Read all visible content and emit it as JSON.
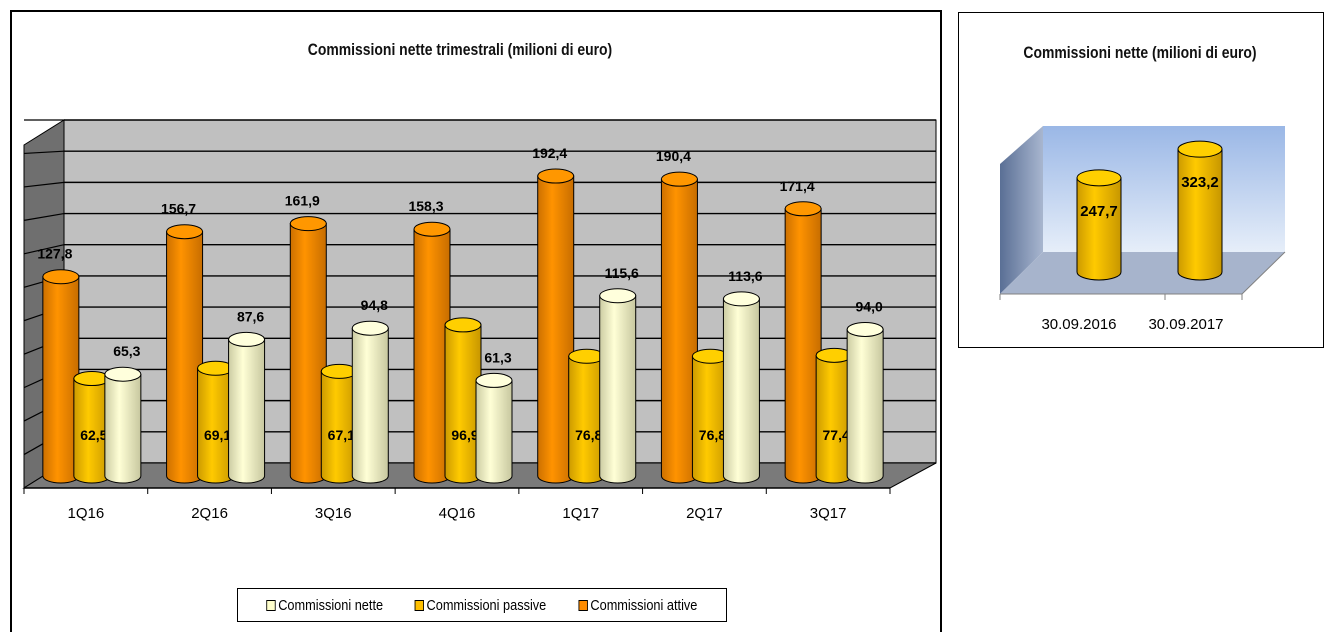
{
  "chart_data": [
    {
      "type": "bar",
      "title": "Commissioni nette trimestrali (milioni di euro)",
      "categories": [
        "1Q16",
        "2Q16",
        "3Q16",
        "4Q16",
        "1Q17",
        "2Q17",
        "3Q17"
      ],
      "series": [
        {
          "name": "Commissioni attive",
          "values": [
            127.8,
            156.7,
            161.9,
            158.3,
            192.4,
            190.4,
            171.4
          ],
          "labels": [
            "127,8",
            "156,7",
            "161,9",
            "158,3",
            "192,4",
            "190,4",
            "171,4"
          ],
          "color": "#FF8C00"
        },
        {
          "name": "Commissioni passive",
          "values": [
            62.5,
            69.1,
            67.1,
            96.9,
            76.8,
            76.8,
            77.4
          ],
          "labels": [
            "62,5",
            "69,1",
            "67,1",
            "96,9",
            "76,8",
            "76,8",
            "77,4"
          ],
          "color": "#FFC000"
        },
        {
          "name": "Commissioni nette",
          "values": [
            65.3,
            87.6,
            94.8,
            61.3,
            115.6,
            113.6,
            94.0
          ],
          "labels": [
            "65,3",
            "87,6",
            "94,8",
            "61,3",
            "115,6",
            "113,6",
            "94,0"
          ],
          "color": "#FFFFCC"
        }
      ],
      "legend": [
        "Commissioni nette",
        "Commissioni passive",
        "Commissioni attive"
      ],
      "legend_position": "bottom",
      "ylim": [
        0,
        220
      ],
      "grid": true
    },
    {
      "type": "bar",
      "title": "Commissioni nette (milioni di euro)",
      "categories": [
        "30.09.2016",
        "30.09.2017"
      ],
      "values": [
        247.7,
        323.2
      ],
      "labels": [
        "247,7",
        "323,2"
      ],
      "color": "#FFC000",
      "ylim": [
        0,
        500
      ],
      "grid": false
    }
  ]
}
